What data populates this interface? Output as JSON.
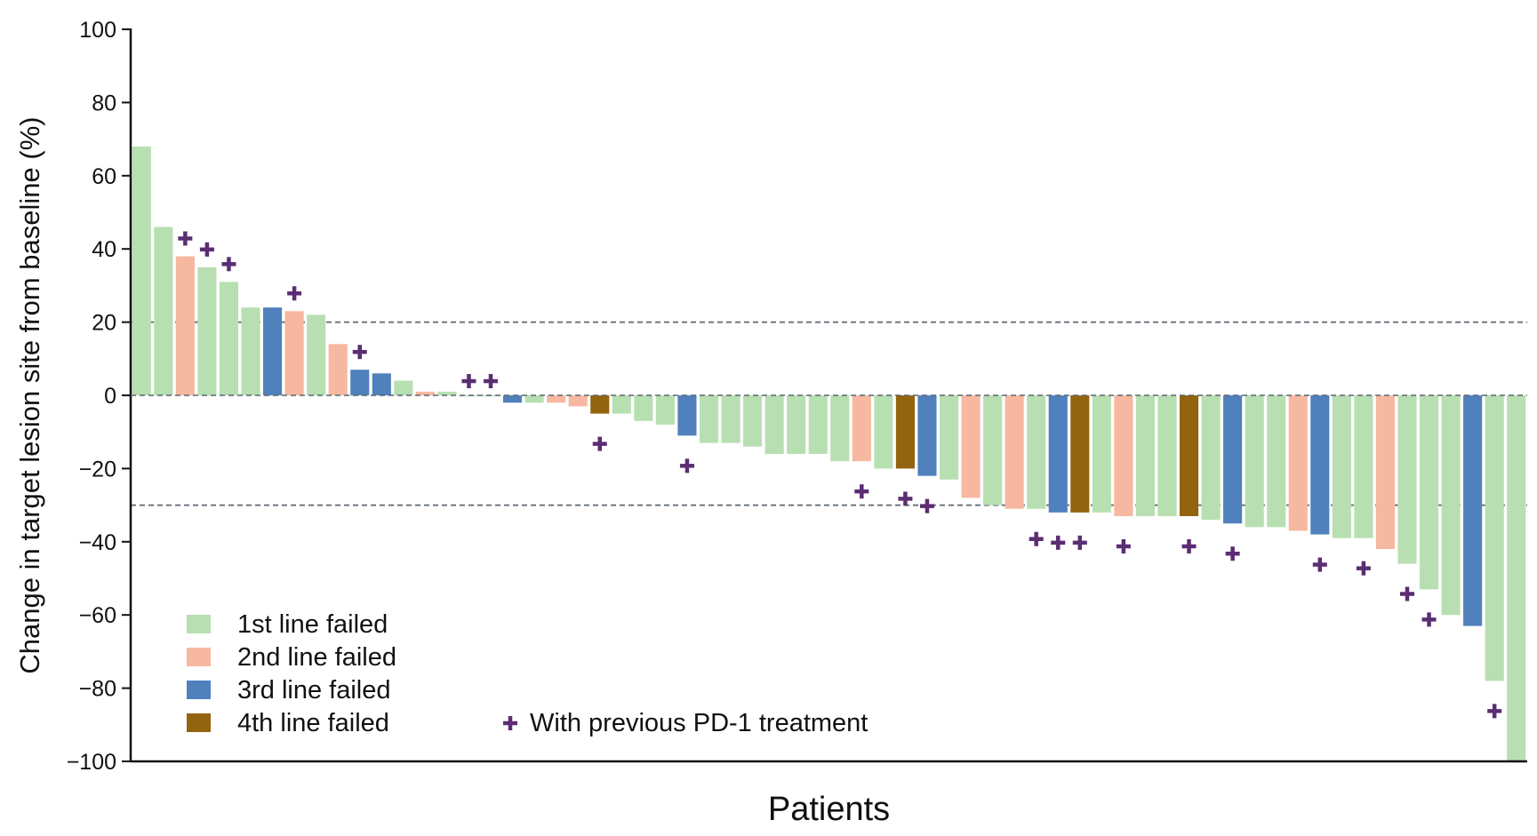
{
  "chart_data": {
    "type": "bar",
    "title": "",
    "xlabel": "Patients",
    "ylabel": "Change in target lesion site from baseline (%)",
    "ylim": [
      -100,
      100
    ],
    "yticks": [
      100,
      80,
      60,
      40,
      20,
      0,
      -20,
      -40,
      -60,
      -80,
      -100
    ],
    "ytick_labels": [
      "100",
      "80",
      "60",
      "40",
      "20",
      "0",
      "−20",
      "−40",
      "−60",
      "−80",
      "−100"
    ],
    "reference_lines": [
      20,
      -30
    ],
    "colors": {
      "1st line failed": "#b8dfb1",
      "2nd line failed": "#f6b8a0",
      "3rd line failed": "#5081bd",
      "4th line failed": "#93640f",
      "marker": "#5b2d73",
      "axis": "#111111",
      "ref_line": "#5a6670"
    },
    "legend": {
      "lines": [
        "1st line failed",
        "2nd line failed",
        "3rd line failed",
        "4th line failed"
      ],
      "marker_label": "With previous PD-1 treatment",
      "marker_symbol": "+",
      "placement": "bottom-left"
    },
    "series_key": "line",
    "marker_key": "pd1",
    "patients": [
      {
        "value": 68,
        "line": "1st line failed",
        "pd1": false
      },
      {
        "value": 46,
        "line": "1st line failed",
        "pd1": false
      },
      {
        "value": 38,
        "line": "2nd line failed",
        "pd1": true
      },
      {
        "value": 35,
        "line": "1st line failed",
        "pd1": true
      },
      {
        "value": 31,
        "line": "1st line failed",
        "pd1": true
      },
      {
        "value": 24,
        "line": "1st line failed",
        "pd1": false
      },
      {
        "value": 24,
        "line": "3rd line failed",
        "pd1": false
      },
      {
        "value": 23,
        "line": "2nd line failed",
        "pd1": true
      },
      {
        "value": 22,
        "line": "1st line failed",
        "pd1": false
      },
      {
        "value": 14,
        "line": "2nd line failed",
        "pd1": false
      },
      {
        "value": 7,
        "line": "3rd line failed",
        "pd1": true
      },
      {
        "value": 6,
        "line": "3rd line failed",
        "pd1": false
      },
      {
        "value": 4,
        "line": "1st line failed",
        "pd1": false
      },
      {
        "value": 1,
        "line": "2nd line failed",
        "pd1": false
      },
      {
        "value": 1,
        "line": "1st line failed",
        "pd1": false
      },
      {
        "value": 0,
        "line": "1st line failed",
        "pd1": true
      },
      {
        "value": 0,
        "line": "1st line failed",
        "pd1": true
      },
      {
        "value": -2,
        "line": "3rd line failed",
        "pd1": false
      },
      {
        "value": -2,
        "line": "1st line failed",
        "pd1": false
      },
      {
        "value": -2,
        "line": "2nd line failed",
        "pd1": false
      },
      {
        "value": -3,
        "line": "2nd line failed",
        "pd1": false
      },
      {
        "value": -5,
        "line": "4th line failed",
        "pd1": true
      },
      {
        "value": -5,
        "line": "1st line failed",
        "pd1": false
      },
      {
        "value": -7,
        "line": "1st line failed",
        "pd1": false
      },
      {
        "value": -8,
        "line": "1st line failed",
        "pd1": false
      },
      {
        "value": -11,
        "line": "3rd line failed",
        "pd1": true
      },
      {
        "value": -13,
        "line": "1st line failed",
        "pd1": false
      },
      {
        "value": -13,
        "line": "1st line failed",
        "pd1": false
      },
      {
        "value": -14,
        "line": "1st line failed",
        "pd1": false
      },
      {
        "value": -16,
        "line": "1st line failed",
        "pd1": false
      },
      {
        "value": -16,
        "line": "1st line failed",
        "pd1": false
      },
      {
        "value": -16,
        "line": "1st line failed",
        "pd1": false
      },
      {
        "value": -18,
        "line": "1st line failed",
        "pd1": false
      },
      {
        "value": -18,
        "line": "2nd line failed",
        "pd1": true
      },
      {
        "value": -20,
        "line": "1st line failed",
        "pd1": false
      },
      {
        "value": -20,
        "line": "4th line failed",
        "pd1": true
      },
      {
        "value": -22,
        "line": "3rd line failed",
        "pd1": true
      },
      {
        "value": -23,
        "line": "1st line failed",
        "pd1": false
      },
      {
        "value": -28,
        "line": "2nd line failed",
        "pd1": false
      },
      {
        "value": -30,
        "line": "1st line failed",
        "pd1": false
      },
      {
        "value": -31,
        "line": "2nd line failed",
        "pd1": false
      },
      {
        "value": -31,
        "line": "1st line failed",
        "pd1": true
      },
      {
        "value": -32,
        "line": "3rd line failed",
        "pd1": true
      },
      {
        "value": -32,
        "line": "4th line failed",
        "pd1": true
      },
      {
        "value": -32,
        "line": "1st line failed",
        "pd1": false
      },
      {
        "value": -33,
        "line": "2nd line failed",
        "pd1": true
      },
      {
        "value": -33,
        "line": "1st line failed",
        "pd1": false
      },
      {
        "value": -33,
        "line": "1st line failed",
        "pd1": false
      },
      {
        "value": -33,
        "line": "4th line failed",
        "pd1": true
      },
      {
        "value": -34,
        "line": "1st line failed",
        "pd1": false
      },
      {
        "value": -35,
        "line": "3rd line failed",
        "pd1": true
      },
      {
        "value": -36,
        "line": "1st line failed",
        "pd1": false
      },
      {
        "value": -36,
        "line": "1st line failed",
        "pd1": false
      },
      {
        "value": -37,
        "line": "2nd line failed",
        "pd1": false
      },
      {
        "value": -38,
        "line": "3rd line failed",
        "pd1": true
      },
      {
        "value": -39,
        "line": "1st line failed",
        "pd1": false
      },
      {
        "value": -39,
        "line": "1st line failed",
        "pd1": true
      },
      {
        "value": -42,
        "line": "2nd line failed",
        "pd1": false
      },
      {
        "value": -46,
        "line": "1st line failed",
        "pd1": true
      },
      {
        "value": -53,
        "line": "1st line failed",
        "pd1": true
      },
      {
        "value": -60,
        "line": "1st line failed",
        "pd1": false
      },
      {
        "value": -63,
        "line": "3rd line failed",
        "pd1": false
      },
      {
        "value": -78,
        "line": "1st line failed",
        "pd1": true
      },
      {
        "value": -100,
        "line": "1st line failed",
        "pd1": false
      }
    ]
  }
}
